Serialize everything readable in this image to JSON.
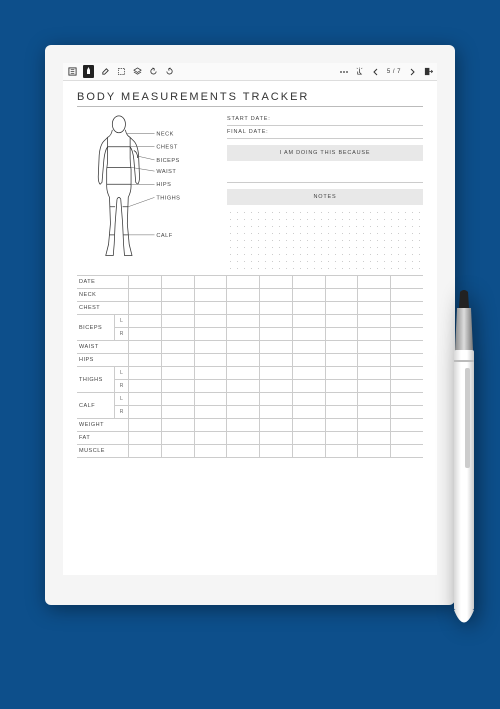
{
  "colors": {
    "page_bg": "#0d4f8b",
    "tablet_bezel": "#f5f5f5",
    "screen": "#ffffff",
    "line": "#cccccc",
    "graybox": "#e8e8e8",
    "text": "#333333"
  },
  "toolbar": {
    "page_indicator": "5 / 7"
  },
  "title": "BODY MEASUREMENTS TRACKER",
  "info": {
    "start_date_label": "START DATE:",
    "final_date_label": "FINAL DATE:",
    "reason_label": "I AM DOING THIS BECAUSE",
    "notes_label": "NOTES"
  },
  "body_labels": {
    "neck": "NECK",
    "chest": "CHEST",
    "biceps": "BICEPS",
    "waist": "WAIST",
    "hips": "HIPS",
    "thighs": "THIGHS",
    "calf": "CALF"
  },
  "table": {
    "columns_count": 9,
    "sub_L": "L",
    "sub_R": "R",
    "rows": [
      {
        "label": "DATE",
        "type": "single"
      },
      {
        "label": "NECK",
        "type": "single"
      },
      {
        "label": "CHEST",
        "type": "single"
      },
      {
        "label": "BICEPS",
        "type": "double"
      },
      {
        "label": "WAIST",
        "type": "single"
      },
      {
        "label": "HIPS",
        "type": "single"
      },
      {
        "label": "THIGHS",
        "type": "double"
      },
      {
        "label": "CALF",
        "type": "double"
      },
      {
        "label": "WEIGHT",
        "type": "single"
      },
      {
        "label": "FAT",
        "type": "single"
      },
      {
        "label": "MUSCLE",
        "type": "single"
      }
    ]
  }
}
